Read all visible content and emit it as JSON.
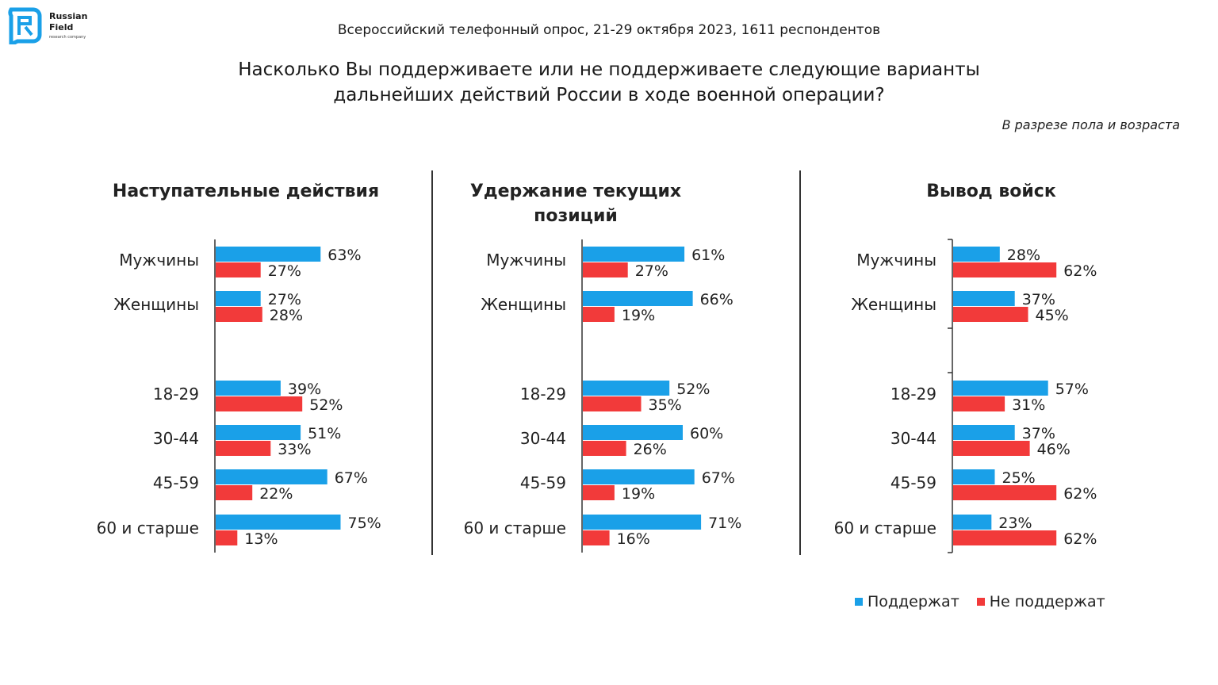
{
  "brand": {
    "name": "Russian\nField",
    "subtitle": "research company"
  },
  "header": {
    "survey_info": "Всероссийский телефонный опрос, 21-29 октября 2023, 1611 респондентов",
    "question_line1": "Насколько Вы поддерживаете или не поддерживаете следующие варианты",
    "question_line2": "дальнейших действий России в ходе военной операции?",
    "breakdown_note": "В разрезе пола и возраста"
  },
  "colors": {
    "support": "#1aa0e8",
    "not_support": "#f23a3a"
  },
  "legend": {
    "support": "Поддержат",
    "not_support": "Не поддержат"
  },
  "chart_data": [
    {
      "type": "bar",
      "orientation": "horizontal",
      "title": "Наступательные действия",
      "categories": [
        "Мужчины",
        "Женщины",
        "18-29",
        "30-44",
        "45-59",
        "60 и старше"
      ],
      "series": [
        {
          "name": "Поддержат",
          "values": [
            63,
            27,
            39,
            51,
            67,
            75
          ]
        },
        {
          "name": "Не поддержат",
          "values": [
            27,
            28,
            52,
            33,
            22,
            13
          ]
        }
      ]
    },
    {
      "type": "bar",
      "orientation": "horizontal",
      "title": "Удержание текущих позиций",
      "categories": [
        "Мужчины",
        "Женщины",
        "18-29",
        "30-44",
        "45-59",
        "60 и старше"
      ],
      "series": [
        {
          "name": "Поддержат",
          "values": [
            61,
            66,
            52,
            60,
            67,
            71
          ]
        },
        {
          "name": "Не поддержат",
          "values": [
            27,
            19,
            35,
            26,
            19,
            16
          ]
        }
      ]
    },
    {
      "type": "bar",
      "orientation": "horizontal",
      "title": "Вывод войск",
      "categories": [
        "Мужчины",
        "Женщины",
        "18-29",
        "30-44",
        "45-59",
        "60 и старше"
      ],
      "series": [
        {
          "name": "Поддержат",
          "values": [
            28,
            37,
            57,
            37,
            25,
            23
          ]
        },
        {
          "name": "Не поддержат",
          "values": [
            62,
            45,
            31,
            46,
            62,
            62
          ]
        }
      ]
    }
  ]
}
